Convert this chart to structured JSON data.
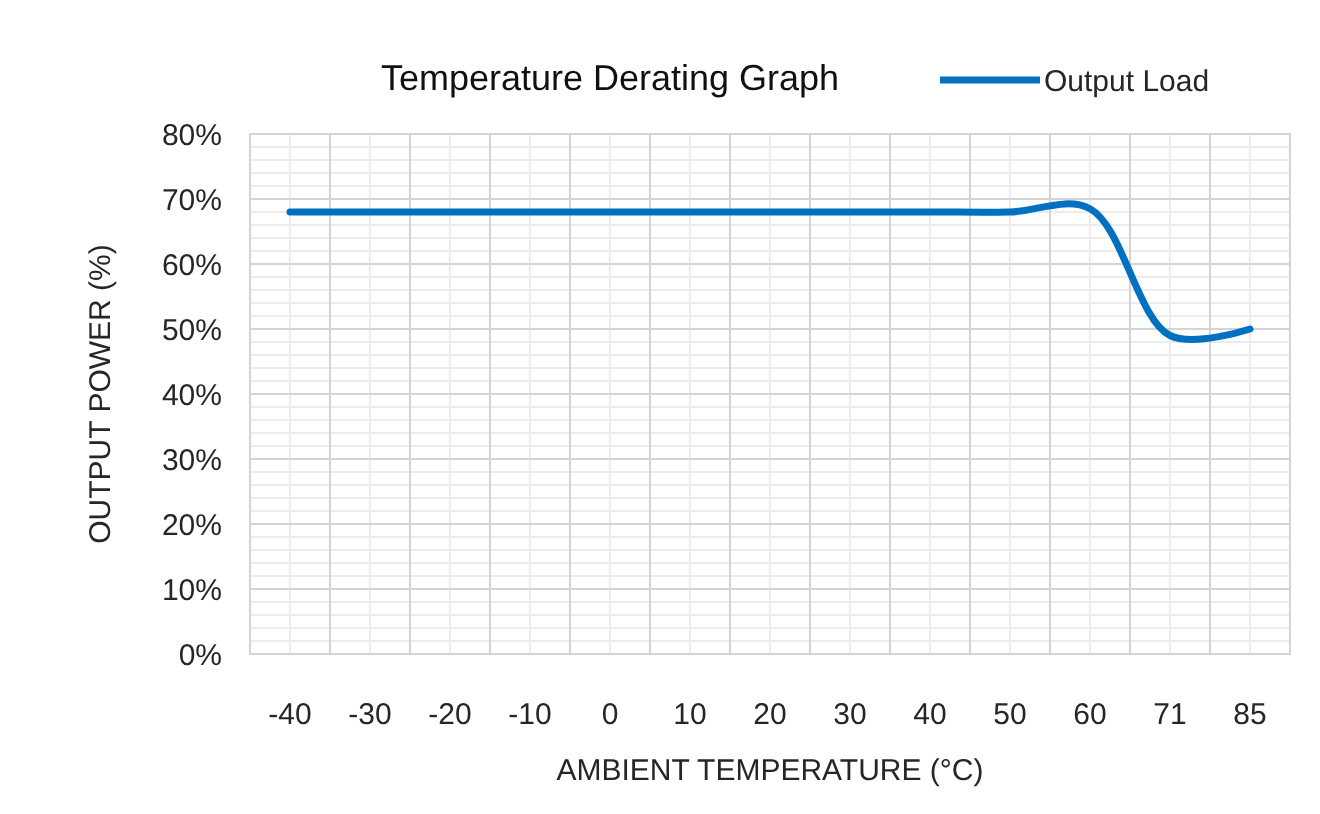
{
  "chart_data": {
    "type": "line",
    "title": "Temperature Derating Graph",
    "xlabel": "AMBIENT TEMPERATURE (°C)",
    "ylabel": "OUTPUT POWER (%)",
    "categories": [
      "-40",
      "-30",
      "-20",
      "-10",
      "0",
      "10",
      "20",
      "30",
      "40",
      "50",
      "60",
      "71",
      "85"
    ],
    "series": [
      {
        "name": "Output Load",
        "color": "#0070c0",
        "values": [
          68,
          68,
          68,
          68,
          68,
          68,
          68,
          68,
          68,
          68,
          68.5,
          49,
          50
        ]
      }
    ],
    "ylim": [
      0,
      80
    ],
    "yticks": [
      {
        "value": 0,
        "label": "0%"
      },
      {
        "value": 10,
        "label": "10%"
      },
      {
        "value": 20,
        "label": "20%"
      },
      {
        "value": 30,
        "label": "30%"
      },
      {
        "value": 40,
        "label": "40%"
      },
      {
        "value": 50,
        "label": "50%"
      },
      {
        "value": 60,
        "label": "60%"
      },
      {
        "value": 70,
        "label": "70%"
      },
      {
        "value": 80,
        "label": "80%"
      }
    ],
    "grid": true,
    "legend": "top right",
    "line_style": "solid",
    "marker": "none"
  }
}
